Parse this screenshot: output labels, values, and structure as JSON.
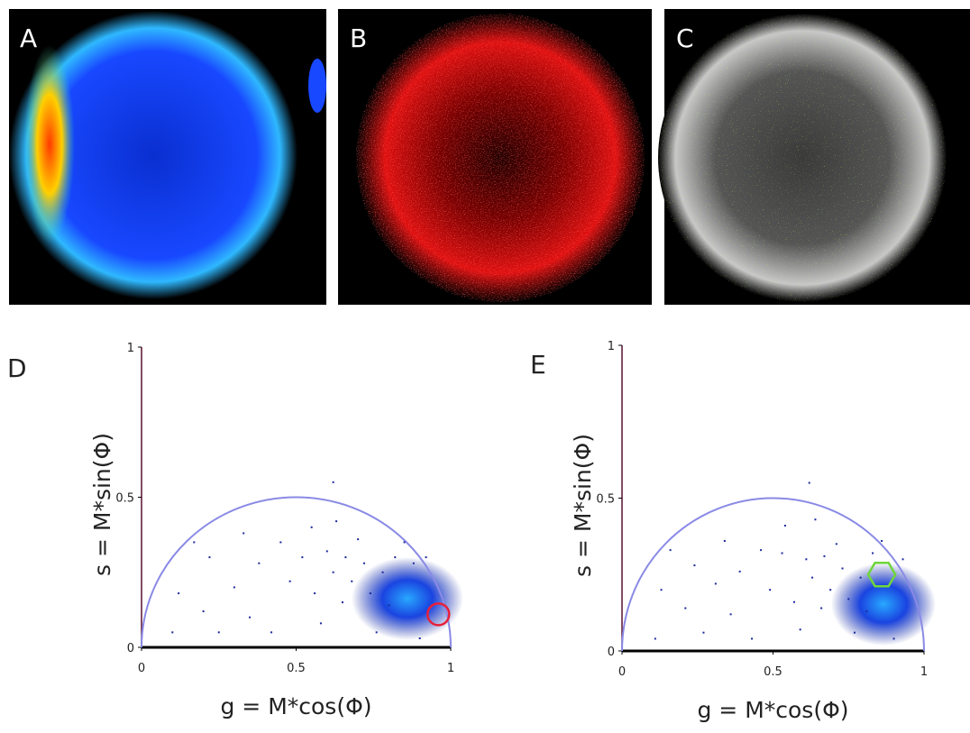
{
  "panel_labels": [
    "A",
    "B",
    "C"
  ],
  "chart_data": [
    {
      "type": "scatter",
      "panel_label": "D",
      "xlabel": "g = M*cos(Φ)",
      "ylabel": "s = M*sin(Φ)",
      "xlim": [
        0,
        1
      ],
      "ylim": [
        0,
        1
      ],
      "xticks": [
        0,
        0.5,
        1
      ],
      "yticks": [
        0,
        0.5,
        1
      ],
      "semicircle": {
        "center": [
          0.5,
          0
        ],
        "radius": 0.5,
        "color": "#8a8ae6"
      },
      "roi": {
        "x": 0.96,
        "y": 0.11,
        "r": 0.035,
        "color": "#e8203a",
        "shape": "circle"
      },
      "color": "#1a2a9a",
      "x": [
        0.12,
        0.17,
        0.2,
        0.22,
        0.25,
        0.3,
        0.33,
        0.35,
        0.38,
        0.42,
        0.45,
        0.48,
        0.52,
        0.55,
        0.56,
        0.58,
        0.6,
        0.62,
        0.63,
        0.65,
        0.66,
        0.68,
        0.7,
        0.72,
        0.74,
        0.76,
        0.78,
        0.8,
        0.82,
        0.85,
        0.88,
        0.9,
        0.92,
        0.62,
        0.1
      ],
      "values": [
        0.18,
        0.35,
        0.12,
        0.3,
        0.05,
        0.2,
        0.38,
        0.1,
        0.28,
        0.05,
        0.35,
        0.22,
        0.3,
        0.4,
        0.18,
        0.08,
        0.32,
        0.25,
        0.42,
        0.15,
        0.3,
        0.22,
        0.36,
        0.28,
        0.18,
        0.05,
        0.25,
        0.14,
        0.3,
        0.35,
        0.28,
        0.03,
        0.3,
        0.55,
        0.05
      ]
    },
    {
      "type": "scatter",
      "panel_label": "E",
      "xlabel": "g = M*cos(Φ)",
      "ylabel": "s = M*sin(Φ)",
      "xlim": [
        0,
        1
      ],
      "ylim": [
        0,
        1
      ],
      "xticks": [
        0,
        0.5,
        1
      ],
      "yticks": [
        0,
        0.5,
        1
      ],
      "semicircle": {
        "center": [
          0.5,
          0
        ],
        "radius": 0.5,
        "color": "#8a8ae6"
      },
      "roi": {
        "x": 0.86,
        "y": 0.25,
        "r": 0.045,
        "color": "#6fd63a",
        "shape": "hexagon"
      },
      "color": "#1a2a9a",
      "x": [
        0.13,
        0.16,
        0.21,
        0.24,
        0.27,
        0.31,
        0.34,
        0.36,
        0.39,
        0.43,
        0.46,
        0.49,
        0.53,
        0.54,
        0.57,
        0.59,
        0.61,
        0.63,
        0.64,
        0.66,
        0.67,
        0.69,
        0.71,
        0.73,
        0.75,
        0.77,
        0.79,
        0.81,
        0.83,
        0.86,
        0.9,
        0.93,
        0.62,
        0.11
      ],
      "values": [
        0.2,
        0.33,
        0.14,
        0.28,
        0.06,
        0.22,
        0.36,
        0.12,
        0.26,
        0.04,
        0.33,
        0.2,
        0.32,
        0.41,
        0.16,
        0.07,
        0.3,
        0.24,
        0.43,
        0.14,
        0.31,
        0.2,
        0.35,
        0.27,
        0.17,
        0.06,
        0.24,
        0.13,
        0.32,
        0.36,
        0.04,
        0.3,
        0.55,
        0.04
      ]
    }
  ]
}
